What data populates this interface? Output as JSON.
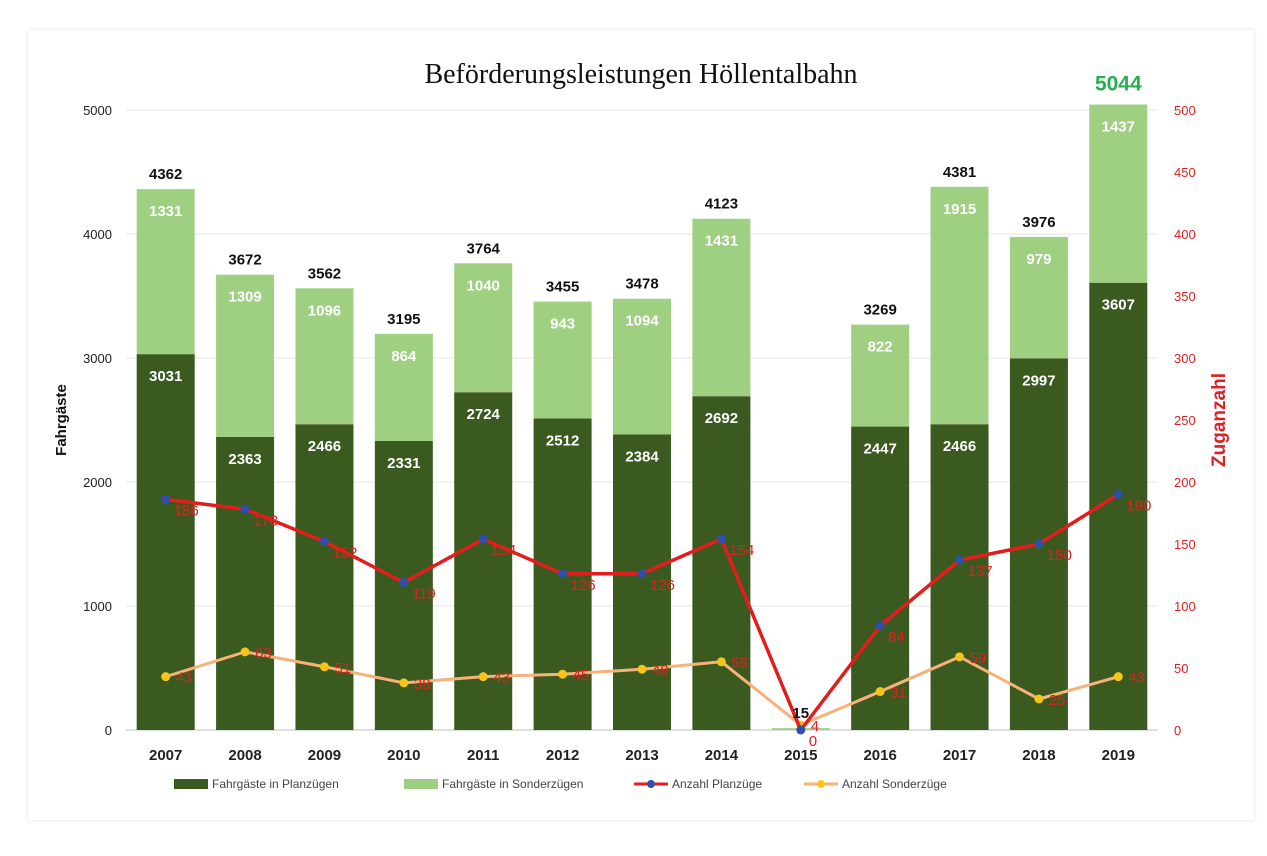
{
  "chart_data": {
    "type": "bar",
    "title": "Beförderungsleistungen Höllentalbahn",
    "ylabel": "Fahrgäste",
    "y2label": "Zuganzahl",
    "ylim": [
      0,
      5000
    ],
    "y2lim": [
      0,
      500
    ],
    "yticks": [
      "0",
      "1000",
      "2000",
      "3000",
      "4000",
      "5000"
    ],
    "y2ticks": [
      "0",
      "50",
      "100",
      "150",
      "200",
      "250",
      "300",
      "350",
      "400",
      "450",
      "500"
    ],
    "categories": [
      "2007",
      "2008",
      "2009",
      "2010",
      "2011",
      "2012",
      "2013",
      "2014",
      "2015",
      "2016",
      "2017",
      "2018",
      "2019"
    ],
    "stacked": true,
    "series": [
      {
        "name": "Fahrgäste in Planzügen",
        "kind": "bar",
        "axis": "left",
        "color": "#3a5a1f",
        "values": [
          3031,
          2363,
          2466,
          2331,
          2724,
          2512,
          2384,
          2692,
          0,
          2447,
          2466,
          2997,
          3607
        ]
      },
      {
        "name": "Fahrgäste in Sonderzügen",
        "kind": "bar",
        "axis": "left",
        "color": "#9fd082",
        "values": [
          1331,
          1309,
          1096,
          864,
          1040,
          943,
          1094,
          1431,
          15,
          822,
          1915,
          979,
          1437
        ]
      },
      {
        "name": "Anzahl Planzüge",
        "kind": "line",
        "axis": "right",
        "color": "#e51c1c",
        "marker_color": "#2f4fa8",
        "values": [
          186,
          178,
          152,
          119,
          154,
          126,
          126,
          154,
          0,
          84,
          137,
          150,
          190
        ]
      },
      {
        "name": "Anzahl Sonderzüge",
        "kind": "line",
        "axis": "right",
        "color": "#f7b27a",
        "marker_color": "#f5c518",
        "values": [
          43,
          63,
          51,
          38,
          43,
          45,
          49,
          55,
          4,
          31,
          59,
          25,
          43
        ]
      }
    ],
    "totals": [
      4362,
      3672,
      3562,
      3195,
      3764,
      3455,
      3478,
      4123,
      15,
      3269,
      4381,
      3976,
      5044
    ],
    "highlight_total": {
      "index": 12,
      "color": "#22b14c"
    },
    "legend_position": "bottom",
    "grid": true
  }
}
